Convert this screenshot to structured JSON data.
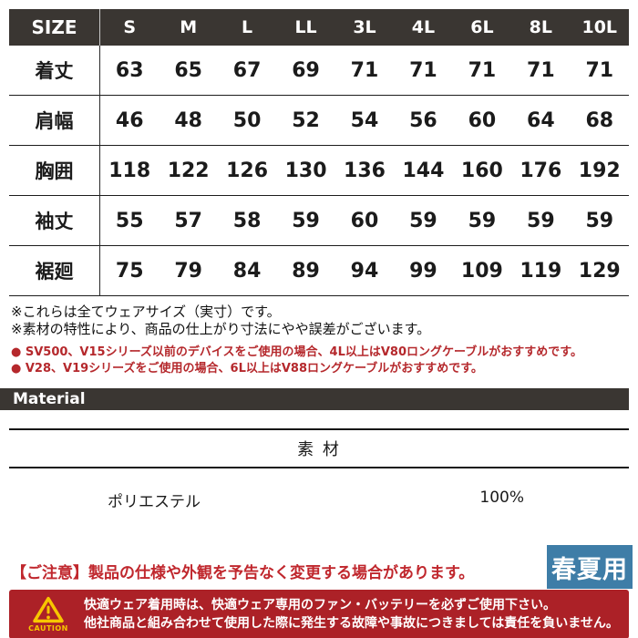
{
  "size_table": {
    "header": [
      "SIZE",
      "S",
      "M",
      "L",
      "LL",
      "3L",
      "4L",
      "6L",
      "8L",
      "10L"
    ],
    "rows": [
      {
        "label": "着丈",
        "values": [
          "63",
          "65",
          "67",
          "69",
          "71",
          "71",
          "71",
          "71",
          "71"
        ]
      },
      {
        "label": "肩幅",
        "values": [
          "46",
          "48",
          "50",
          "52",
          "54",
          "56",
          "60",
          "64",
          "68"
        ]
      },
      {
        "label": "胸囲",
        "values": [
          "118",
          "122",
          "126",
          "130",
          "136",
          "144",
          "160",
          "176",
          "192"
        ]
      },
      {
        "label": "袖丈",
        "values": [
          "55",
          "57",
          "58",
          "59",
          "60",
          "59",
          "59",
          "59",
          "59"
        ]
      },
      {
        "label": "裾廻",
        "values": [
          "75",
          "79",
          "84",
          "89",
          "94",
          "99",
          "109",
          "119",
          "129"
        ]
      }
    ]
  },
  "notes": [
    "※これらは全てウェアサイズ（実寸）です。",
    "※素材の特性により、商品の仕上がり寸法にやや誤差がございます。"
  ],
  "recommendations": [
    "● SV500、V15シリーズ以前のデバイスをご使用の場合、4L以上はV80ロングケーブルがおすすめです。",
    "● V28、V19シリーズをご使用の場合、6L以上はV88ロングケーブルがおすすめです。"
  ],
  "material_section": {
    "bar_label": "Material",
    "title": "素 材",
    "material_name": "ポリエステル",
    "material_percent": "100%"
  },
  "notice": "【ご注意】製品の仕様や外観を予告なく変更する場合があります。",
  "season_badge": "春夏用",
  "caution": {
    "label": "CAUTION",
    "lines": [
      "快適ウェア着用時は、快適ウェア専用のファン・バッテリーを必ずご使用下さい。",
      "他社商品と組み合わせて使用した際に発生する故障や事故につきましては責任を負いません。"
    ]
  },
  "colors": {
    "header_bg": "#3a3632",
    "accent_red": "#b5282c",
    "notice_red": "#c0272d",
    "caution_bg": "#ac2127",
    "caution_yellow": "#f7c600",
    "badge_blue": "#3e7da7"
  }
}
